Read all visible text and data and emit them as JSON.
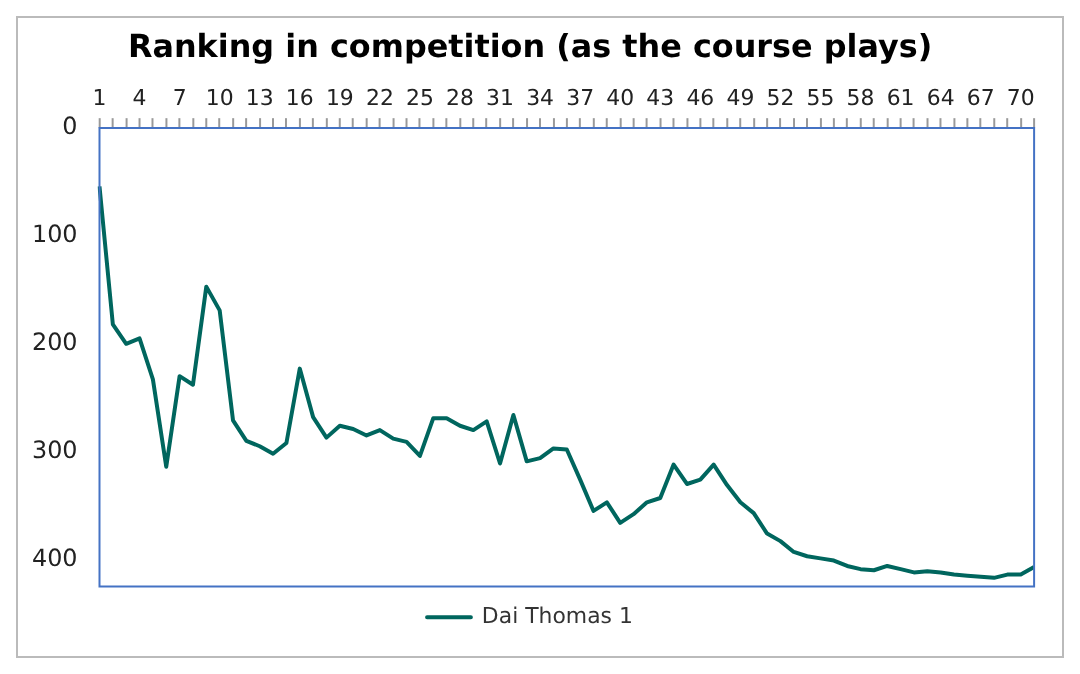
{
  "chart_data": {
    "type": "line",
    "title": "Ranking in competition (as the course plays)",
    "categories": [
      "1",
      null,
      null,
      "4",
      null,
      null,
      "7",
      null,
      null,
      "10",
      null,
      null,
      "13",
      null,
      null,
      "16",
      null,
      null,
      "19",
      null,
      null,
      "22",
      null,
      null,
      "25",
      null,
      null,
      "28",
      null,
      null,
      "31",
      null,
      null,
      "34",
      null,
      null,
      "37",
      null,
      null,
      "40",
      null,
      null,
      "43",
      null,
      null,
      "46",
      null,
      null,
      "49",
      null,
      null,
      "52",
      null,
      null,
      "55",
      null,
      null,
      "58",
      null,
      null,
      "61",
      null,
      null,
      "64",
      null,
      null,
      "67",
      null,
      null,
      "70",
      null
    ],
    "series": [
      {
        "name": "Dai Thomas 1",
        "color": "#00665e",
        "values": [
          54,
          182,
          200,
          195,
          233,
          314,
          230,
          238,
          147,
          169,
          271,
          290,
          295,
          302,
          292,
          223,
          268,
          287,
          276,
          279,
          285,
          280,
          288,
          291,
          304,
          269,
          269,
          276,
          280,
          272,
          311,
          266,
          309,
          306,
          297,
          298,
          326,
          355,
          347,
          366,
          358,
          347,
          343,
          312,
          330,
          326,
          312,
          331,
          347,
          357,
          376,
          383,
          393,
          397,
          399,
          401,
          406,
          409,
          410,
          406,
          409,
          412,
          411,
          412,
          414,
          415,
          416,
          417,
          414,
          414,
          407
        ]
      }
    ],
    "ylim": [
      425,
      0
    ],
    "yticks": [
      0,
      100,
      200,
      300,
      400
    ],
    "legend": "bottom",
    "marker": "none",
    "line_style": "solid"
  }
}
